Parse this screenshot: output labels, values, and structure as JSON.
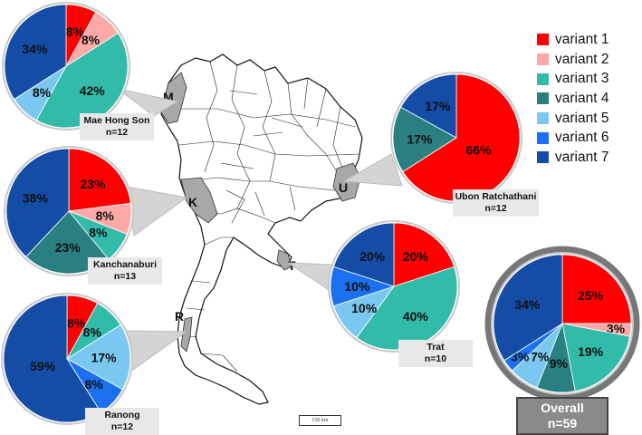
{
  "colors": {
    "variant 1": "#ff0000",
    "variant 2": "#ffa8a8",
    "variant 3": "#33bbaa",
    "variant 4": "#2a8080",
    "variant 5": "#7ac8f0",
    "variant 6": "#1a70ee",
    "variant 7": "#144ca6"
  },
  "legend": [
    "variant 1",
    "variant 2",
    "variant 3",
    "variant 4",
    "variant 5",
    "variant 6",
    "variant 7"
  ],
  "map": {
    "markers": [
      "M",
      "K",
      "R",
      "T",
      "U"
    ],
    "scale": "150 km"
  },
  "chart_data": [
    {
      "type": "pie",
      "name": "Mae Hong Son",
      "n": "n=12",
      "slices": [
        {
          "variant": "variant 1",
          "value": 8,
          "label": "8%"
        },
        {
          "variant": "variant 2",
          "value": 8,
          "label": "8%"
        },
        {
          "variant": "variant 3",
          "value": 42,
          "label": "42%"
        },
        {
          "variant": "variant 5",
          "value": 8,
          "label": "8%"
        },
        {
          "variant": "variant 7",
          "value": 34,
          "label": "34%"
        }
      ]
    },
    {
      "type": "pie",
      "name": "Kanchanaburi",
      "n": "n=13",
      "slices": [
        {
          "variant": "variant 1",
          "value": 23,
          "label": "23%"
        },
        {
          "variant": "variant 2",
          "value": 8,
          "label": "8%"
        },
        {
          "variant": "variant 3",
          "value": 8,
          "label": "8%"
        },
        {
          "variant": "variant 4",
          "value": 23,
          "label": "23%"
        },
        {
          "variant": "variant 7",
          "value": 38,
          "label": "38%"
        }
      ]
    },
    {
      "type": "pie",
      "name": "Ranong",
      "n": "n=12",
      "slices": [
        {
          "variant": "variant 1",
          "value": 8,
          "label": "8%"
        },
        {
          "variant": "variant 3",
          "value": 8,
          "label": "8%"
        },
        {
          "variant": "variant 5",
          "value": 17,
          "label": "17%"
        },
        {
          "variant": "variant 6",
          "value": 8,
          "label": "8%"
        },
        {
          "variant": "variant 7",
          "value": 59,
          "label": "59%"
        }
      ]
    },
    {
      "type": "pie",
      "name": "Ubon Ratchathani",
      "n": "n=12",
      "slices": [
        {
          "variant": "variant 1",
          "value": 66,
          "label": "66%"
        },
        {
          "variant": "variant 4",
          "value": 17,
          "label": "17%"
        },
        {
          "variant": "variant 7",
          "value": 17,
          "label": "17%"
        }
      ]
    },
    {
      "type": "pie",
      "name": "Trat",
      "n": "n=10",
      "slices": [
        {
          "variant": "variant 1",
          "value": 20,
          "label": "20%"
        },
        {
          "variant": "variant 3",
          "value": 40,
          "label": "40%"
        },
        {
          "variant": "variant 5",
          "value": 10,
          "label": "10%"
        },
        {
          "variant": "variant 6",
          "value": 10,
          "label": "10%"
        },
        {
          "variant": "variant 7",
          "value": 20,
          "label": "20%"
        }
      ]
    },
    {
      "type": "pie",
      "name": "Overall",
      "n": "n=59",
      "slices": [
        {
          "variant": "variant 1",
          "value": 25,
          "label": "25%"
        },
        {
          "variant": "variant 2",
          "value": 3,
          "label": "3%"
        },
        {
          "variant": "variant 3",
          "value": 19,
          "label": "19%"
        },
        {
          "variant": "variant 4",
          "value": 9,
          "label": "9%"
        },
        {
          "variant": "variant 5",
          "value": 7,
          "label": "7%"
        },
        {
          "variant": "variant 6",
          "value": 3,
          "label": "3%"
        },
        {
          "variant": "variant 7",
          "value": 34,
          "label": "34%"
        }
      ]
    }
  ]
}
